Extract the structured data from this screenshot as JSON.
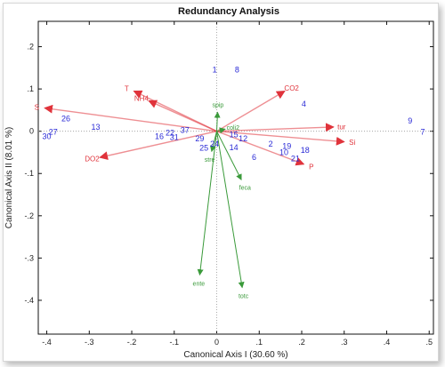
{
  "chart_data": {
    "type": "scatter",
    "title": "Redundancy Analysis",
    "xlabel": "Canonical Axis I (30.60 %)",
    "ylabel": "Canonical Axis II (8.01 %)",
    "xlim": [
      -0.42,
      0.51
    ],
    "ylim": [
      -0.48,
      0.26
    ],
    "xticks": [
      -0.4,
      -0.3,
      -0.2,
      -0.1,
      0,
      0.1,
      0.2,
      0.3,
      0.4,
      0.5
    ],
    "yticks": [
      0.2,
      0.1,
      0,
      -0.1,
      -0.2,
      -0.3,
      -0.4
    ],
    "grid": false,
    "origin_lines": true,
    "env_color": "#e0333b",
    "species_color": "#3a9a3a",
    "site_color": "#2a2ad6",
    "sites": [
      {
        "label": "1",
        "x": -0.005,
        "y": 0.145
      },
      {
        "label": "8",
        "x": 0.048,
        "y": 0.145
      },
      {
        "label": "4",
        "x": 0.205,
        "y": 0.065
      },
      {
        "label": "26",
        "x": -0.355,
        "y": 0.03
      },
      {
        "label": "13",
        "x": -0.285,
        "y": 0.01
      },
      {
        "label": "27",
        "x": -0.385,
        "y": -0.002
      },
      {
        "label": "30",
        "x": -0.4,
        "y": -0.012
      },
      {
        "label": "16",
        "x": -0.135,
        "y": -0.012
      },
      {
        "label": "22",
        "x": -0.11,
        "y": -0.004
      },
      {
        "label": "31",
        "x": -0.1,
        "y": -0.014
      },
      {
        "label": "37",
        "x": -0.075,
        "y": 0.002
      },
      {
        "label": "29",
        "x": -0.04,
        "y": -0.018
      },
      {
        "label": "25",
        "x": -0.03,
        "y": -0.04
      },
      {
        "label": "24",
        "x": -0.005,
        "y": -0.03
      },
      {
        "label": "15",
        "x": 0.04,
        "y": -0.008
      },
      {
        "label": "12",
        "x": 0.062,
        "y": -0.018
      },
      {
        "label": "14",
        "x": 0.04,
        "y": -0.038
      },
      {
        "label": "6",
        "x": 0.088,
        "y": -0.062
      },
      {
        "label": "2",
        "x": 0.127,
        "y": -0.03
      },
      {
        "label": "19",
        "x": 0.165,
        "y": -0.035
      },
      {
        "label": "10",
        "x": 0.158,
        "y": -0.05
      },
      {
        "label": "18",
        "x": 0.208,
        "y": -0.045
      },
      {
        "label": "21",
        "x": 0.185,
        "y": -0.065
      },
      {
        "label": "9",
        "x": 0.455,
        "y": 0.025
      },
      {
        "label": "7",
        "x": 0.485,
        "y": -0.002
      }
    ],
    "env_vectors": [
      {
        "label": "S",
        "x": -0.405,
        "y": 0.055
      },
      {
        "label": "T",
        "x": -0.195,
        "y": 0.095
      },
      {
        "label": "NH4",
        "x": -0.16,
        "y": 0.072
      },
      {
        "label": "DO2",
        "x": -0.275,
        "y": -0.062
      },
      {
        "label": "CO2",
        "x": 0.16,
        "y": 0.095
      },
      {
        "label": "tur",
        "x": 0.275,
        "y": 0.01
      },
      {
        "label": "Si",
        "x": 0.3,
        "y": -0.025
      },
      {
        "label": "P",
        "x": 0.205,
        "y": -0.078
      }
    ],
    "species_vectors": [
      {
        "label": "ente",
        "x": -0.04,
        "y": -0.34
      },
      {
        "label": "totc",
        "x": 0.06,
        "y": -0.37
      },
      {
        "label": "feca",
        "x": 0.058,
        "y": -0.115
      },
      {
        "label": "coli2",
        "x": 0.02,
        "y": 0.005
      },
      {
        "label": "spip",
        "x": 0.002,
        "y": 0.045
      },
      {
        "label": "stre",
        "x": -0.012,
        "y": -0.048
      }
    ]
  }
}
